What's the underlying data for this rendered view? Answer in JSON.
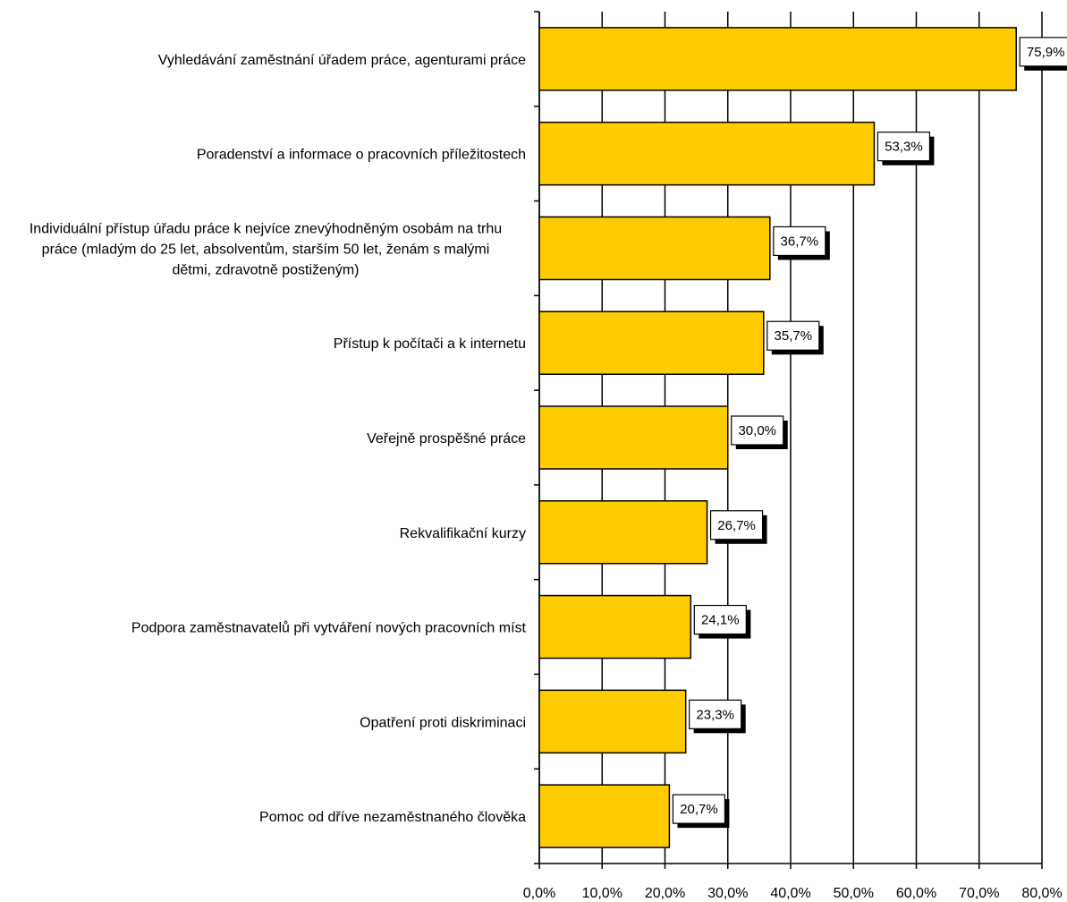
{
  "chart_data": {
    "type": "bar",
    "orientation": "horizontal",
    "categories": [
      "Vyhledávání zaměstnání úřadem práce, agenturami práce",
      "Poradenství a informace o pracovních příležitostech",
      "Individuální přístup úřadu práce k nejvíce znevýhodněným osobám na trhu práce  (mladým do 25 let, absolventům, starším 50 let, ženám s malými dětmi, zdravotně postiženým)",
      "Přístup k počítači a k internetu",
      "Veřejně prospěšné práce",
      "Rekvalifikační kurzy",
      "Podpora zaměstnavatelů při vytváření nových pracovních míst",
      "Opatření proti diskriminaci",
      "Pomoc od dříve nezaměstnaného člověka"
    ],
    "category_lines": [
      [
        "Vyhledávání zaměstnání úřadem práce, agenturami práce"
      ],
      [
        "Poradenství a informace o pracovních příležitostech"
      ],
      [
        "Individuální přístup úřadu práce k nejvíce znevýhodněným osobám na trhu",
        "práce  (mladým do 25 let, absolventům, starším 50 let, ženám s malými",
        "dětmi, zdravotně postiženým)"
      ],
      [
        "Přístup k počítači a k internetu"
      ],
      [
        "Veřejně prospěšné práce"
      ],
      [
        "Rekvalifikační kurzy"
      ],
      [
        "Podpora zaměstnavatelů při vytváření nových pracovních míst"
      ],
      [
        "Opatření proti diskriminaci"
      ],
      [
        "Pomoc od dříve nezaměstnaného člověka"
      ]
    ],
    "values": [
      75.9,
      53.3,
      36.7,
      35.7,
      30.0,
      26.7,
      24.1,
      23.3,
      20.7
    ],
    "data_labels": [
      "75,9%",
      "53,3%",
      "36,7%",
      "35,7%",
      "30,0%",
      "26,7%",
      "24,1%",
      "23,3%",
      "20,7%"
    ],
    "xlim": [
      0,
      80
    ],
    "x_ticks": [
      0,
      10,
      20,
      30,
      40,
      50,
      60,
      70,
      80
    ],
    "x_tick_labels": [
      "0,0%",
      "10,0%",
      "20,0%",
      "30,0%",
      "40,0%",
      "50,0%",
      "60,0%",
      "70,0%",
      "80,0%"
    ],
    "grid": true,
    "bar_color": "#ffcc00",
    "outline_color": "#000000",
    "title": "",
    "xlabel": "",
    "ylabel": ""
  }
}
